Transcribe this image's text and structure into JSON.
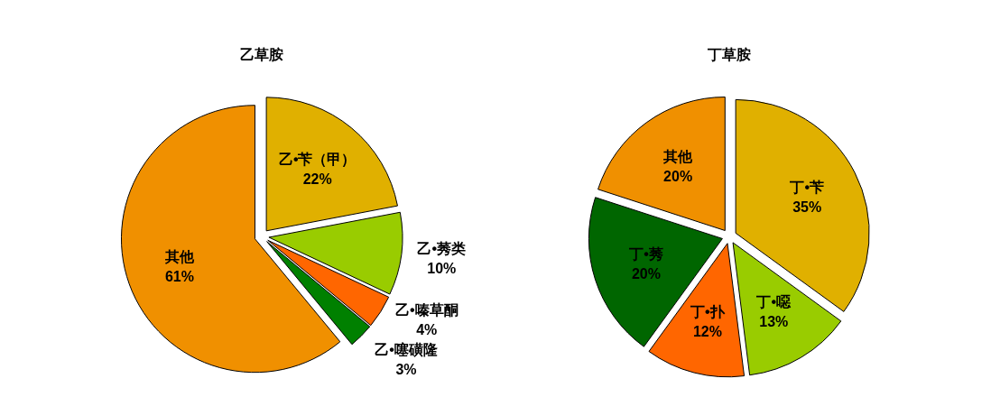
{
  "chart_data": [
    {
      "type": "pie",
      "title": "乙草胺",
      "categories": [
        "乙•苄（甲）",
        "乙•莠类",
        "乙•嗪草酮",
        "乙•噻磺隆",
        "其他"
      ],
      "values": [
        22,
        10,
        4,
        3,
        61
      ],
      "value_labels": [
        "22%",
        "10%",
        "4%",
        "3%",
        "61%"
      ],
      "colors": [
        "#e0b000",
        "#99cc00",
        "#ff6600",
        "#008000",
        "#f09000"
      ]
    },
    {
      "type": "pie",
      "title": "丁草胺",
      "categories": [
        "丁•苄",
        "丁•噁",
        "丁•扑",
        "丁•莠",
        "其他"
      ],
      "values": [
        35,
        13,
        12,
        20,
        20
      ],
      "value_labels": [
        "35%",
        "13%",
        "12%",
        "20%",
        "20%"
      ],
      "colors": [
        "#e0b000",
        "#99cc00",
        "#ff6600",
        "#006600",
        "#f09000"
      ]
    }
  ]
}
